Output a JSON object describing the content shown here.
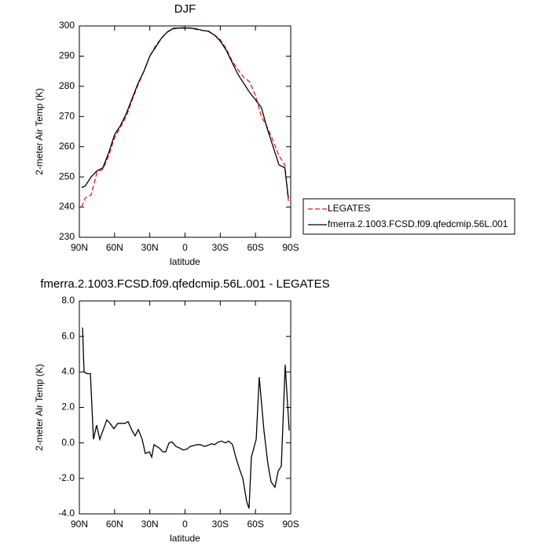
{
  "chart_data": [
    {
      "type": "line",
      "title": "DJF",
      "x_label": "latitude",
      "y_label": "2-meter Air Temp (K)",
      "xlim": [
        90,
        -90
      ],
      "xticks": [
        {
          "value": 90,
          "label": "90N"
        },
        {
          "value": 60,
          "label": "60N"
        },
        {
          "value": 30,
          "label": "30N"
        },
        0,
        {
          "value": -30,
          "label": "30S"
        },
        {
          "value": -60,
          "label": "60S"
        },
        {
          "value": -90,
          "label": "90S"
        }
      ],
      "ylim": [
        230,
        300
      ],
      "yticks": [
        230,
        240,
        250,
        260,
        270,
        280,
        290,
        300
      ],
      "x": [
        88,
        85,
        80,
        75,
        70,
        65,
        60,
        55,
        50,
        45,
        40,
        35,
        30,
        25,
        20,
        15,
        10,
        5,
        0,
        -5,
        -10,
        -15,
        -20,
        -25,
        -30,
        -35,
        -40,
        -45,
        -50,
        -55,
        -60,
        -65,
        -70,
        -75,
        -80,
        -85,
        -88
      ],
      "series": [
        {
          "name": "LEGATES",
          "color": "#e41a1c",
          "line_style": "dashed",
          "values": [
            240,
            243,
            244,
            251.5,
            252.5,
            257,
            263,
            266.5,
            270,
            275.5,
            280.5,
            285,
            290,
            293.5,
            296,
            298,
            299,
            299.3,
            299.5,
            299.2,
            298.8,
            298.5,
            298.3,
            297,
            295.5,
            292.5,
            288.5,
            285.5,
            283,
            281.5,
            277,
            270,
            266.5,
            262,
            257,
            254,
            242
          ]
        },
        {
          "name": "fmerra.2.1003.FCSD.f09.qfedcmip.56L.001",
          "color": "#000000",
          "line_style": "solid",
          "values": [
            246.5,
            247,
            250,
            252,
            253,
            258,
            264,
            267,
            271,
            276,
            281,
            285,
            290,
            293,
            296,
            298,
            299.2,
            299.3,
            299.3,
            299.3,
            299,
            298.5,
            298.2,
            297,
            295,
            292,
            288,
            284,
            281,
            278,
            275.5,
            273,
            266,
            260,
            254,
            253,
            243
          ]
        }
      ]
    },
    {
      "type": "line",
      "title": "fmerra.2.1003.FCSD.f09.qfedcmip.56L.001 - LEGATES",
      "x_label": "latitude",
      "y_label": "2-meter Air Temp (K)",
      "xlim": [
        90,
        -90
      ],
      "xticks": [
        {
          "value": 90,
          "label": "90N"
        },
        {
          "value": 60,
          "label": "60N"
        },
        {
          "value": 30,
          "label": "30N"
        },
        0,
        {
          "value": -30,
          "label": "30S"
        },
        {
          "value": -60,
          "label": "60S"
        },
        {
          "value": -90,
          "label": "90S"
        }
      ],
      "ylim": [
        -4,
        8
      ],
      "yticks": [
        {
          "value": -4,
          "label": "-4.0"
        },
        {
          "value": -2,
          "label": "-2.0"
        },
        {
          "value": 0,
          "label": "0.0"
        },
        {
          "value": 2,
          "label": "2.0"
        },
        {
          "value": 4,
          "label": "4.0"
        },
        {
          "value": 6,
          "label": "6.0"
        },
        {
          "value": 8,
          "label": "8.0"
        }
      ],
      "x": [
        87.3,
        86.0,
        83.3,
        80.6,
        78.0,
        75.3,
        72.6,
        66.6,
        63.9,
        60.6,
        57.2,
        51.2,
        48.5,
        45.2,
        42.5,
        39.8,
        36.5,
        33.8,
        30.4,
        28.4,
        26.4,
        21.7,
        19.1,
        16.4,
        13.7,
        11.0,
        7.7,
        4.3,
        1.6,
        -1.7,
        -4.4,
        -10.4,
        -13.1,
        -16.4,
        -19.1,
        -22.4,
        -25.1,
        -28.4,
        -31.1,
        -34.5,
        -37.1,
        -40.5,
        -43.2,
        -46.5,
        -49.2,
        -52.5,
        -54.5,
        -56.5,
        -60.6,
        -63.2,
        -67.2,
        -70.6,
        -73.3,
        -76.6,
        -79.3,
        -82.0,
        -85.3,
        -88.7
      ],
      "series": [
        {
          "color": "#000000",
          "line_style": "solid",
          "values": [
            6.5,
            4.0,
            3.9,
            3.9,
            0.2,
            1.0,
            0.2,
            1.3,
            1.1,
            0.8,
            1.1,
            1.1,
            1.2,
            0.7,
            0.4,
            0.75,
            0.2,
            -0.6,
            -0.5,
            -0.8,
            -0.1,
            -0.3,
            -0.5,
            -0.5,
            0.0,
            0.05,
            -0.2,
            -0.3,
            -0.4,
            -0.35,
            -0.2,
            -0.1,
            -0.1,
            -0.2,
            -0.15,
            -0.05,
            -0.1,
            0.05,
            0.1,
            0.0,
            0.1,
            -0.1,
            -0.8,
            -1.5,
            -2.0,
            -3.3,
            -3.7,
            -0.8,
            0.2,
            3.7,
            0.7,
            -1.2,
            -2.2,
            -2.5,
            -1.6,
            -1.3,
            4.4,
            0.7
          ]
        }
      ]
    }
  ]
}
